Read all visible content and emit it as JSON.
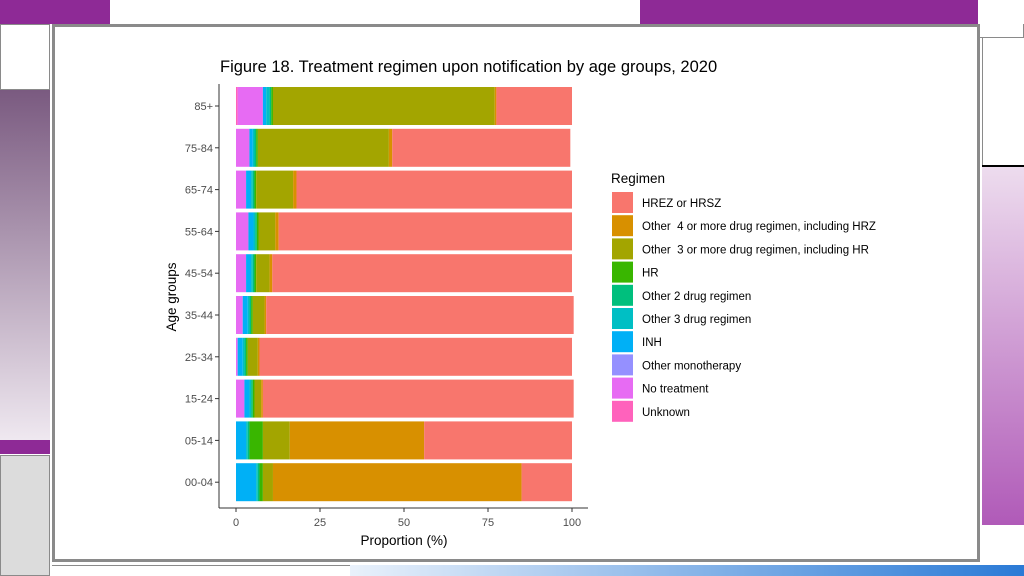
{
  "chart_data": {
    "type": "bar",
    "orientation": "horizontal",
    "stacked": true,
    "title": "Figure 18. Treatment regimen upon notification by age groups, 2020",
    "xlabel": "Proportion (%)",
    "ylabel": "Age groups",
    "xlim": [
      0,
      100
    ],
    "xticks": [
      0,
      25,
      50,
      75,
      100
    ],
    "grid": false,
    "legend_position": "right",
    "legend_title": "Regimen",
    "categories": [
      "00-04",
      "05-14",
      "15-24",
      "25-34",
      "35-44",
      "45-54",
      "55-64",
      "65-74",
      "75-84",
      "85+"
    ],
    "stack_order": [
      "Unknown",
      "No treatment",
      "Other monotherapy",
      "INH",
      "Other 3 drug regimen",
      "Other 2 drug regimen",
      "HR",
      "Other  3 or more drug regimen, including HR",
      "Other  4 or more drug regimen, including HRZ",
      "HREZ or HRSZ"
    ],
    "series": [
      {
        "name": "HREZ or HRSZ",
        "color": "#F8766D",
        "values": [
          15,
          44,
          92.5,
          93,
          91.5,
          89.2,
          87.3,
          82,
          53,
          22.5
        ]
      },
      {
        "name": "Other  4 or more drug regimen, including HRZ",
        "color": "#D89000",
        "values": [
          74,
          40,
          0.5,
          0.5,
          0.5,
          0.8,
          1,
          1,
          1,
          0.5
        ]
      },
      {
        "name": "Other  3 or more drug regimen, including HR",
        "color": "#A3A500",
        "values": [
          3,
          8,
          2,
          3,
          3.5,
          4,
          5,
          11,
          39,
          66
        ]
      },
      {
        "name": "HR",
        "color": "#39B600",
        "values": [
          1,
          4,
          0.5,
          0.5,
          0.5,
          0.5,
          0.5,
          0.5,
          0.5,
          0.5
        ]
      },
      {
        "name": "Other 2 drug regimen",
        "color": "#00BF7D",
        "values": [
          0.5,
          0.5,
          0.5,
          0.5,
          0.5,
          0.5,
          0.5,
          0.5,
          0.5,
          0.5
        ]
      },
      {
        "name": "Other 3 drug regimen",
        "color": "#00BFC4",
        "values": [
          0.5,
          0.5,
          0.5,
          0.5,
          0.5,
          0.5,
          0.5,
          0.5,
          0.5,
          1
        ]
      },
      {
        "name": "INH",
        "color": "#00B0F6",
        "values": [
          6,
          3,
          1.5,
          1.5,
          1.5,
          1.5,
          1.5,
          1.5,
          1,
          1
        ]
      },
      {
        "name": "Other monotherapy",
        "color": "#9590FF",
        "values": [
          0,
          0,
          0,
          0,
          0,
          0,
          0,
          0,
          0,
          0
        ]
      },
      {
        "name": "No treatment",
        "color": "#E76BF3",
        "values": [
          0,
          0,
          2.5,
          0.5,
          2,
          3,
          3.7,
          3,
          4,
          7.5
        ]
      },
      {
        "name": "Unknown",
        "color": "#FF62BC",
        "values": [
          0,
          0,
          0,
          0,
          0,
          0,
          0,
          0,
          0,
          0.5
        ]
      }
    ],
    "legend_order": [
      "HREZ or HRSZ",
      "Other  4 or more drug regimen, including HRZ",
      "Other  3 or more drug regimen, including HR",
      "HR",
      "Other 2 drug regimen",
      "Other 3 drug regimen",
      "INH",
      "Other monotherapy",
      "No treatment",
      "Unknown"
    ]
  },
  "decor": {
    "accent_purple": "#8e2a96",
    "accent_gray": "#bdb3c2",
    "accent_frame": "#8a8a8a"
  }
}
